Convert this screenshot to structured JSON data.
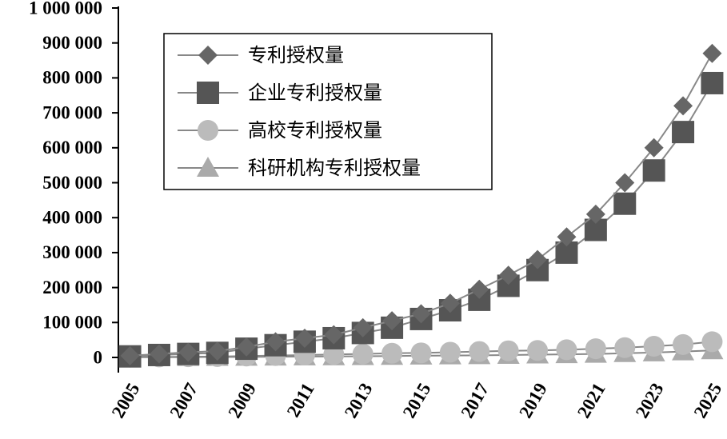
{
  "chart_data": {
    "type": "line",
    "x": [
      2005,
      2006,
      2007,
      2008,
      2009,
      2010,
      2011,
      2012,
      2013,
      2014,
      2015,
      2016,
      2017,
      2018,
      2019,
      2020,
      2021,
      2022,
      2023,
      2024,
      2025
    ],
    "xlim": [
      2004.6,
      2025.4
    ],
    "xticks": [
      2005,
      2007,
      2009,
      2011,
      2013,
      2015,
      2017,
      2019,
      2021,
      2023,
      2025
    ],
    "ylim": [
      0,
      1000000
    ],
    "yticks": [
      0,
      {
        "value": 100000,
        "label": "100 000"
      },
      {
        "value": 200000,
        "label": "200 000"
      },
      {
        "value": 300000,
        "label": "300 000"
      },
      {
        "value": 400000,
        "label": "400 000"
      },
      {
        "value": 500000,
        "label": "500 000"
      },
      {
        "value": 600000,
        "label": "600 000"
      },
      {
        "value": 700000,
        "label": "700 000"
      },
      {
        "value": 800000,
        "label": "800 000"
      },
      {
        "value": 900000,
        "label": "900 000"
      },
      {
        "value": 1000000,
        "label": "1 000 000"
      }
    ],
    "legend": "upper-left",
    "series": [
      {
        "name": "专利授权量",
        "marker": "diamond",
        "color": "#666666",
        "values": [
          5000,
          10000,
          15000,
          18000,
          30000,
          45000,
          55000,
          65000,
          85000,
          105000,
          125000,
          155000,
          195000,
          235000,
          280000,
          345000,
          410000,
          500000,
          600000,
          720000,
          870000
        ]
      },
      {
        "name": "企业专利授权量",
        "marker": "square",
        "color": "#555555",
        "values": [
          3000,
          7000,
          10000,
          13000,
          25000,
          35000,
          45000,
          55000,
          70000,
          85000,
          110000,
          135000,
          165000,
          205000,
          250000,
          300000,
          365000,
          440000,
          535000,
          645000,
          785000
        ]
      },
      {
        "name": "高校专利授权量",
        "marker": "circle",
        "color": "#bbbbbb",
        "values": [
          1000,
          1500,
          2000,
          2500,
          4000,
          5500,
          7000,
          8500,
          10000,
          12000,
          13000,
          15000,
          17000,
          19000,
          20000,
          22000,
          25000,
          28000,
          32000,
          37000,
          45000
        ]
      },
      {
        "name": "科研机构专利授权量",
        "marker": "triangle",
        "color": "#aaaaaa",
        "values": [
          500,
          700,
          900,
          1100,
          1500,
          2000,
          2500,
          3000,
          3500,
          4000,
          5000,
          5500,
          6000,
          7000,
          8000,
          9000,
          10000,
          12000,
          14000,
          17000,
          20000
        ]
      }
    ]
  }
}
